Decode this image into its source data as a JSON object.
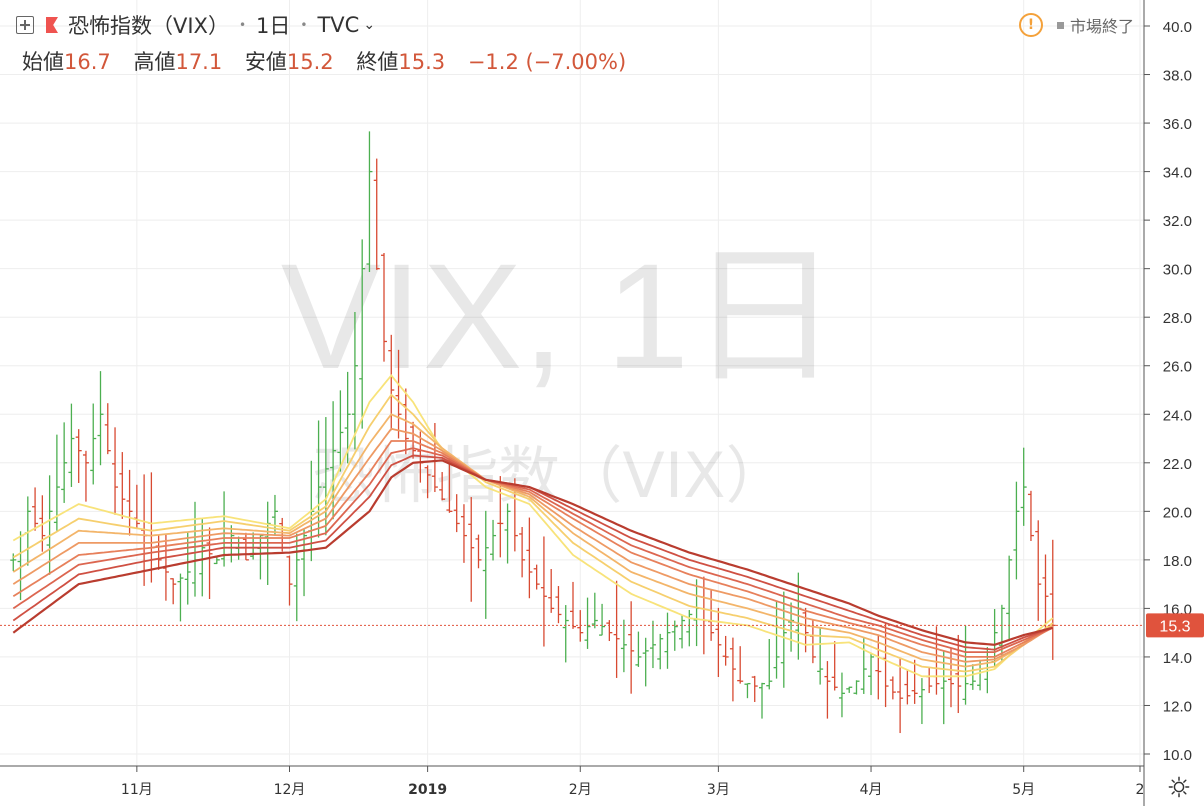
{
  "header": {
    "symbol_name": "恐怖指数（VIX）",
    "interval": "1日",
    "exchange": "TVC"
  },
  "ohlc": {
    "open_label": "始値",
    "open": "16.7",
    "high_label": "高値",
    "high": "17.1",
    "low_label": "安値",
    "low": "15.2",
    "close_label": "終値",
    "close": "15.3",
    "change": "−1.2 (−7.00%)"
  },
  "status": {
    "market": "市場終了"
  },
  "watermark": {
    "main": "VIX, 1日",
    "sub": "恐怖指数（VIX）"
  },
  "price_label": "15.3",
  "colors": {
    "up": "#26a69a",
    "down": "#ef5350",
    "candle_up": "#4caf50",
    "candle_down": "#d84a32",
    "ribbon": [
      "#f8e37a",
      "#f6cf6e",
      "#f3b56a",
      "#ee9a64",
      "#e7805b",
      "#dc6650",
      "#cf5043",
      "#b93c2f"
    ],
    "price_line": "#e0533d"
  },
  "chart_data": {
    "type": "ohlc",
    "title": "恐怖指数（VIX）",
    "ylim": [
      10,
      40
    ],
    "y_ticks": [
      "10.0",
      "12.0",
      "14.0",
      "16.0",
      "18.0",
      "20.0",
      "22.0",
      "24.0",
      "26.0",
      "28.0",
      "30.0",
      "32.0",
      "34.0",
      "36.0",
      "38.0",
      "40.0"
    ],
    "x_ticks": [
      {
        "label": "11月",
        "day": 18
      },
      {
        "label": "12月",
        "day": 39
      },
      {
        "label": "2019",
        "day": 58
      },
      {
        "label": "2月",
        "day": 79
      },
      {
        "label": "3月",
        "day": 98
      },
      {
        "label": "4月",
        "day": 119
      },
      {
        "label": "5月",
        "day": 140
      },
      {
        "label": "2",
        "day": 156
      }
    ],
    "n_days": 156,
    "close_points": [
      [
        1,
        18
      ],
      [
        3,
        20
      ],
      [
        5,
        19
      ],
      [
        7,
        21
      ],
      [
        9,
        23
      ],
      [
        11,
        22
      ],
      [
        13,
        24
      ],
      [
        15,
        21
      ],
      [
        17,
        20
      ],
      [
        19,
        19
      ],
      [
        21,
        18
      ],
      [
        23,
        17
      ],
      [
        25,
        17.5
      ],
      [
        27,
        18.5
      ],
      [
        29,
        18
      ],
      [
        31,
        19
      ],
      [
        33,
        18
      ],
      [
        35,
        19
      ],
      [
        37,
        20
      ],
      [
        39,
        17
      ],
      [
        41,
        19
      ],
      [
        43,
        21
      ],
      [
        45,
        22.5
      ],
      [
        47,
        24
      ],
      [
        48,
        26
      ],
      [
        49,
        30
      ],
      [
        50,
        34
      ],
      [
        51,
        30
      ],
      [
        52,
        27
      ],
      [
        53,
        25
      ],
      [
        55,
        23
      ],
      [
        57,
        22
      ],
      [
        59,
        21
      ],
      [
        61,
        20
      ],
      [
        63,
        19
      ],
      [
        65,
        18
      ],
      [
        67,
        19
      ],
      [
        69,
        20
      ],
      [
        71,
        18
      ],
      [
        73,
        17
      ],
      [
        75,
        16
      ],
      [
        77,
        15.5
      ],
      [
        79,
        15
      ],
      [
        81,
        15.5
      ],
      [
        83,
        15
      ],
      [
        85,
        14.5
      ],
      [
        87,
        14
      ],
      [
        89,
        14.5
      ],
      [
        91,
        15
      ],
      [
        93,
        15.5
      ],
      [
        95,
        16
      ],
      [
        97,
        15
      ],
      [
        99,
        14
      ],
      [
        101,
        13
      ],
      [
        103,
        12.8
      ],
      [
        105,
        13
      ],
      [
        107,
        15
      ],
      [
        109,
        16
      ],
      [
        111,
        14
      ],
      [
        113,
        13
      ],
      [
        115,
        12.5
      ],
      [
        117,
        13
      ],
      [
        119,
        14
      ],
      [
        121,
        12.8
      ],
      [
        123,
        12.3
      ],
      [
        125,
        12.5
      ],
      [
        127,
        12.8
      ],
      [
        129,
        13
      ],
      [
        131,
        12.8
      ],
      [
        133,
        13
      ],
      [
        135,
        14
      ],
      [
        137,
        16
      ],
      [
        138,
        18
      ],
      [
        139,
        20
      ],
      [
        140,
        21
      ],
      [
        141,
        19
      ],
      [
        142,
        17
      ],
      [
        143,
        16.5
      ],
      [
        144,
        15.3
      ]
    ],
    "ma_bands": [
      {
        "name": "",
        "values": [
          [
            1,
            18.8
          ],
          [
            10,
            20.3
          ],
          [
            20,
            19.5
          ],
          [
            30,
            19.8
          ],
          [
            39,
            19.3
          ],
          [
            44,
            20.5
          ],
          [
            50,
            24.5
          ],
          [
            53,
            25.6
          ],
          [
            56,
            24.5
          ],
          [
            60,
            22.5
          ],
          [
            66,
            21
          ],
          [
            72,
            20.3
          ],
          [
            78,
            18.2
          ],
          [
            86,
            16.6
          ],
          [
            94,
            15.6
          ],
          [
            102,
            15.3
          ],
          [
            110,
            14.5
          ],
          [
            116,
            14.6
          ],
          [
            120,
            14
          ],
          [
            126,
            13.2
          ],
          [
            132,
            13.2
          ],
          [
            136,
            13.5
          ],
          [
            140,
            14.6
          ],
          [
            144,
            15.6
          ]
        ]
      },
      {
        "name": "",
        "values": [
          [
            1,
            18.1
          ],
          [
            10,
            19.7
          ],
          [
            20,
            19.2
          ],
          [
            30,
            19.6
          ],
          [
            39,
            19.2
          ],
          [
            44,
            20.2
          ],
          [
            50,
            23.5
          ],
          [
            53,
            24.8
          ],
          [
            56,
            24
          ],
          [
            60,
            22.6
          ],
          [
            66,
            21.2
          ],
          [
            72,
            20.5
          ],
          [
            78,
            18.7
          ],
          [
            86,
            17.1
          ],
          [
            94,
            16.1
          ],
          [
            102,
            15.6
          ],
          [
            110,
            14.9
          ],
          [
            116,
            14.8
          ],
          [
            120,
            14.3
          ],
          [
            126,
            13.6
          ],
          [
            132,
            13.4
          ],
          [
            136,
            13.6
          ],
          [
            140,
            14.5
          ],
          [
            144,
            15.4
          ]
        ]
      },
      {
        "name": "",
        "values": [
          [
            1,
            17.5
          ],
          [
            10,
            19.2
          ],
          [
            20,
            19
          ],
          [
            30,
            19.3
          ],
          [
            39,
            19.1
          ],
          [
            44,
            20
          ],
          [
            50,
            22.8
          ],
          [
            53,
            24
          ],
          [
            56,
            23.6
          ],
          [
            60,
            22.6
          ],
          [
            66,
            21.3
          ],
          [
            72,
            20.6
          ],
          [
            78,
            19.1
          ],
          [
            86,
            17.5
          ],
          [
            94,
            16.6
          ],
          [
            102,
            16
          ],
          [
            110,
            15.3
          ],
          [
            116,
            15
          ],
          [
            120,
            14.6
          ],
          [
            126,
            13.9
          ],
          [
            132,
            13.6
          ],
          [
            136,
            13.8
          ],
          [
            140,
            14.5
          ],
          [
            144,
            15.3
          ]
        ]
      },
      {
        "name": "",
        "values": [
          [
            1,
            17
          ],
          [
            10,
            18.7
          ],
          [
            20,
            18.7
          ],
          [
            30,
            19.1
          ],
          [
            39,
            19
          ],
          [
            44,
            19.7
          ],
          [
            50,
            22.2
          ],
          [
            53,
            23.4
          ],
          [
            56,
            23.2
          ],
          [
            60,
            22.5
          ],
          [
            66,
            21.3
          ],
          [
            72,
            20.7
          ],
          [
            78,
            19.4
          ],
          [
            86,
            17.9
          ],
          [
            94,
            17
          ],
          [
            102,
            16.4
          ],
          [
            110,
            15.6
          ],
          [
            116,
            15.2
          ],
          [
            120,
            14.9
          ],
          [
            126,
            14.2
          ],
          [
            132,
            13.8
          ],
          [
            136,
            13.9
          ],
          [
            140,
            14.5
          ],
          [
            144,
            15.25
          ]
        ]
      },
      {
        "name": "",
        "values": [
          [
            1,
            16.5
          ],
          [
            10,
            18.2
          ],
          [
            20,
            18.5
          ],
          [
            30,
            18.9
          ],
          [
            39,
            18.9
          ],
          [
            44,
            19.4
          ],
          [
            50,
            21.6
          ],
          [
            53,
            22.9
          ],
          [
            56,
            22.9
          ],
          [
            60,
            22.4
          ],
          [
            66,
            21.3
          ],
          [
            72,
            20.8
          ],
          [
            78,
            19.7
          ],
          [
            86,
            18.3
          ],
          [
            94,
            17.4
          ],
          [
            102,
            16.7
          ],
          [
            110,
            15.9
          ],
          [
            116,
            15.4
          ],
          [
            120,
            15.1
          ],
          [
            126,
            14.5
          ],
          [
            132,
            14
          ],
          [
            136,
            14
          ],
          [
            140,
            14.6
          ],
          [
            144,
            15.2
          ]
        ]
      },
      {
        "name": "",
        "values": [
          [
            1,
            16
          ],
          [
            10,
            17.8
          ],
          [
            20,
            18.3
          ],
          [
            30,
            18.7
          ],
          [
            39,
            18.7
          ],
          [
            44,
            19.1
          ],
          [
            50,
            21.1
          ],
          [
            53,
            22.4
          ],
          [
            56,
            22.6
          ],
          [
            60,
            22.3
          ],
          [
            66,
            21.3
          ],
          [
            72,
            20.9
          ],
          [
            78,
            19.9
          ],
          [
            86,
            18.6
          ],
          [
            94,
            17.7
          ],
          [
            102,
            17
          ],
          [
            110,
            16.2
          ],
          [
            116,
            15.6
          ],
          [
            120,
            15.3
          ],
          [
            126,
            14.7
          ],
          [
            132,
            14.2
          ],
          [
            136,
            14.2
          ],
          [
            140,
            14.7
          ],
          [
            144,
            15.2
          ]
        ]
      },
      {
        "name": "",
        "values": [
          [
            1,
            15.5
          ],
          [
            10,
            17.4
          ],
          [
            20,
            18
          ],
          [
            30,
            18.5
          ],
          [
            39,
            18.5
          ],
          [
            44,
            18.8
          ],
          [
            50,
            20.6
          ],
          [
            53,
            21.9
          ],
          [
            56,
            22.3
          ],
          [
            60,
            22.2
          ],
          [
            66,
            21.3
          ],
          [
            72,
            21
          ],
          [
            78,
            20.1
          ],
          [
            86,
            18.9
          ],
          [
            94,
            18
          ],
          [
            102,
            17.3
          ],
          [
            110,
            16.5
          ],
          [
            116,
            15.9
          ],
          [
            120,
            15.5
          ],
          [
            126,
            14.9
          ],
          [
            132,
            14.4
          ],
          [
            136,
            14.3
          ],
          [
            140,
            14.8
          ],
          [
            144,
            15.2
          ]
        ]
      },
      {
        "name": "",
        "values": [
          [
            1,
            15
          ],
          [
            10,
            17
          ],
          [
            20,
            17.6
          ],
          [
            30,
            18.2
          ],
          [
            39,
            18.3
          ],
          [
            44,
            18.5
          ],
          [
            50,
            20
          ],
          [
            53,
            21.4
          ],
          [
            56,
            22
          ],
          [
            60,
            22.1
          ],
          [
            66,
            21.3
          ],
          [
            72,
            21
          ],
          [
            78,
            20.3
          ],
          [
            86,
            19.2
          ],
          [
            94,
            18.3
          ],
          [
            102,
            17.6
          ],
          [
            110,
            16.8
          ],
          [
            116,
            16.2
          ],
          [
            120,
            15.7
          ],
          [
            126,
            15.1
          ],
          [
            132,
            14.6
          ],
          [
            136,
            14.5
          ],
          [
            140,
            14.9
          ],
          [
            144,
            15.2
          ]
        ]
      }
    ],
    "last_close": 15.3
  }
}
